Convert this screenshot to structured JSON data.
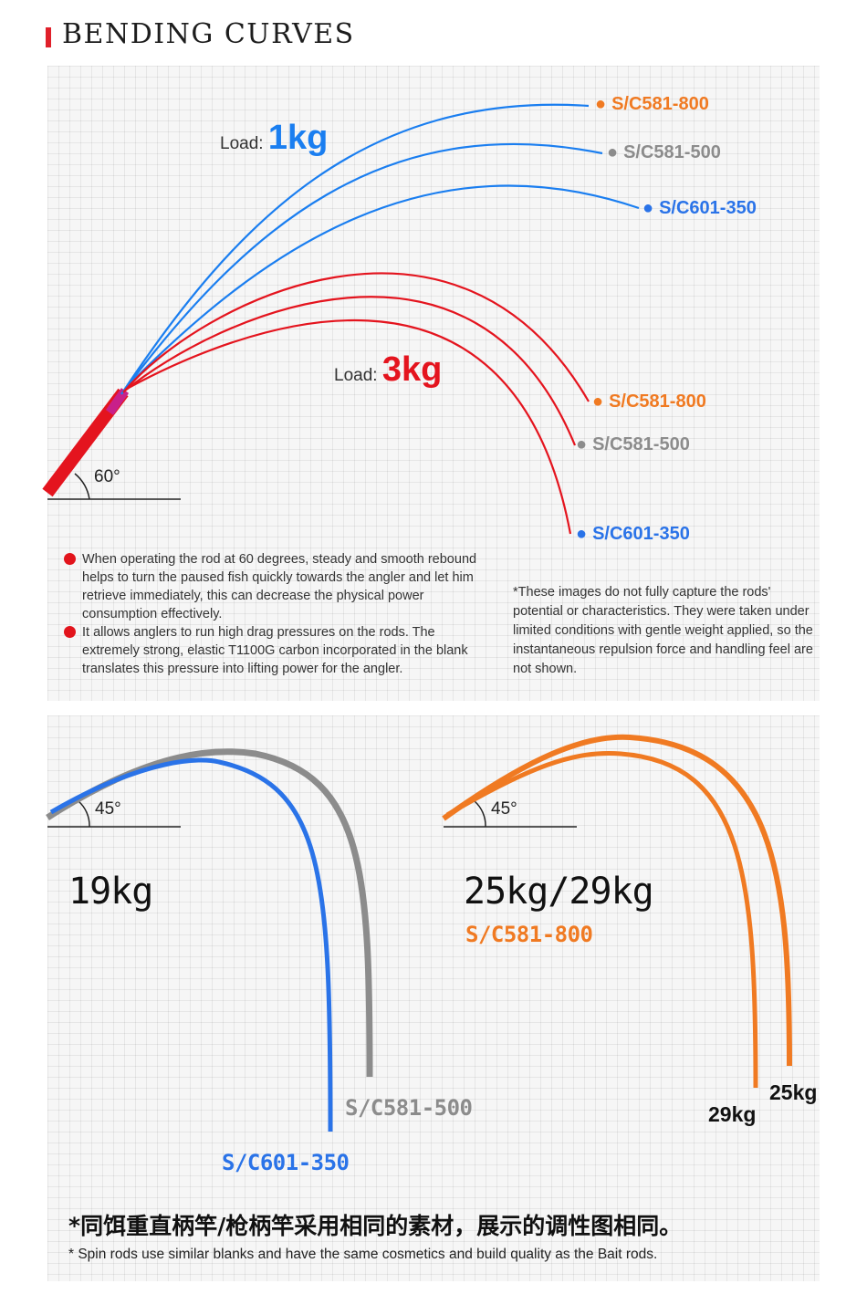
{
  "title": "BENDING CURVES",
  "top_diagram": {
    "angle_label": "60°",
    "load_1kg": {
      "prefix": "Load:",
      "value": "1kg"
    },
    "load_3kg": {
      "prefix": "Load:",
      "value": "3kg"
    },
    "models_1kg": [
      {
        "name": "S/C581-800",
        "color": "#f07a22"
      },
      {
        "name": "S/C581-500",
        "color": "#8c8c8c"
      },
      {
        "name": "S/C601-350",
        "color": "#2a73e8"
      }
    ],
    "models_3kg": [
      {
        "name": "S/C581-800",
        "color": "#f07a22"
      },
      {
        "name": "S/C581-500",
        "color": "#8c8c8c"
      },
      {
        "name": "S/C601-350",
        "color": "#2a73e8"
      }
    ],
    "curve_colors": {
      "load_1kg": "#1a7ef0",
      "load_3kg": "#e4141e"
    },
    "bullets": [
      "When operating the rod at 60 degrees, steady and smooth rebound helps to turn the paused fish quickly towards the angler and let him retrieve immediately, this can decrease the physical power consumption effectively.",
      "It allows anglers to run high drag pressures on the rods. The extremely strong, elastic T1100G carbon incorporated in the blank translates this pressure into lifting power for the angler."
    ],
    "note": "*These images do not fully capture the rods' potential or characteristics. They were taken under limited conditions with gentle weight applied, so the instantaneous repulsion force and handling feel are not shown."
  },
  "bottom_left": {
    "angle_label": "45°",
    "weight": "19kg",
    "models": [
      {
        "name": "S/C581-500",
        "color": "#8c8c8c"
      },
      {
        "name": "S/C601-350",
        "color": "#2a73e8"
      }
    ]
  },
  "bottom_right": {
    "angle_label": "45°",
    "weight": "25kg/29kg",
    "model": "S/C581-800",
    "model_color": "#f07a22",
    "curve_labels": [
      "25kg",
      "29kg"
    ]
  },
  "footer": {
    "chinese": "*同饵重直柄竿/枪柄竿采用相同的素材，展示的调性图相同。",
    "english": "* Spin rods use similar blanks and have the same cosmetics and build quality as the Bait rods."
  }
}
